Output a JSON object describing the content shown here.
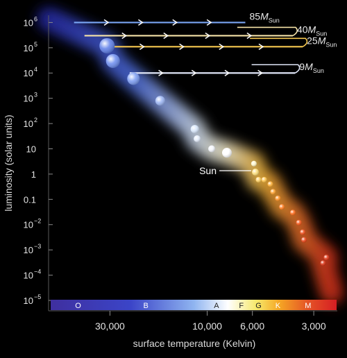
{
  "chart_data": {
    "type": "scatter",
    "title": "",
    "xlabel": "surface temperature (Kelvin)",
    "ylabel": "luminosity (solar units)",
    "x_scale": "log-reversed",
    "y_scale": "log",
    "xlim": [
      60000,
      2300
    ],
    "ylim": [
      1e-05,
      1500000
    ],
    "x_ticks": [
      {
        "value": 30000,
        "label": "30,000"
      },
      {
        "value": 10000,
        "label": "10,000"
      },
      {
        "value": 6000,
        "label": "6,000"
      },
      {
        "value": 3000,
        "label": "3,000"
      }
    ],
    "y_ticks": [
      {
        "value": 1000000,
        "base": "10",
        "exp": "6"
      },
      {
        "value": 100000,
        "base": "10",
        "exp": "5"
      },
      {
        "value": 10000,
        "base": "10",
        "exp": "4"
      },
      {
        "value": 1000,
        "base": "10",
        "exp": "3"
      },
      {
        "value": 100,
        "base": "10",
        "exp": "2"
      },
      {
        "value": 10,
        "base": "10",
        "exp": ""
      },
      {
        "value": 1,
        "base": "1",
        "exp": ""
      },
      {
        "value": 0.1,
        "base": "0.1",
        "exp": ""
      },
      {
        "value": 0.01,
        "base": "10",
        "exp": "−2"
      },
      {
        "value": 0.001,
        "base": "10",
        "exp": "−3"
      },
      {
        "value": 0.0001,
        "base": "10",
        "exp": "−4"
      },
      {
        "value": 1e-05,
        "base": "10",
        "exp": "−5"
      }
    ],
    "spectral_classes": [
      {
        "label": "O",
        "temp": 43000
      },
      {
        "label": "B",
        "temp": 20000
      },
      {
        "label": "A",
        "temp": 9000
      },
      {
        "label": "F",
        "temp": 6800
      },
      {
        "label": "G",
        "temp": 5600
      },
      {
        "label": "K",
        "temp": 4500
      },
      {
        "label": "M",
        "temp": 3200
      }
    ],
    "main_sequence_stars": [
      {
        "temp": 31000,
        "lum": 120000,
        "r": 11,
        "color": "#5d7ee8"
      },
      {
        "temp": 29000,
        "lum": 30000,
        "r": 10,
        "color": "#6b8cef"
      },
      {
        "temp": 23000,
        "lum": 6000,
        "r": 9,
        "color": "#7a9bf2"
      },
      {
        "temp": 17000,
        "lum": 800,
        "r": 7,
        "color": "#9bb5f4"
      },
      {
        "temp": 11500,
        "lum": 60,
        "r": 6,
        "color": "#d7e6fb"
      },
      {
        "temp": 11200,
        "lum": 25,
        "r": 5,
        "color": "#e3ecfb"
      },
      {
        "temp": 9500,
        "lum": 10,
        "r": 5,
        "color": "#f2f5fb"
      },
      {
        "temp": 8000,
        "lum": 7,
        "r": 7,
        "color": "#ffffff"
      },
      {
        "temp": 5900,
        "lum": 2.6,
        "r": 4,
        "color": "#fff6c8"
      },
      {
        "temp": 5800,
        "lum": 1.2,
        "r": 5,
        "color": "#ffe07a"
      },
      {
        "temp": 5600,
        "lum": 0.6,
        "r": 4,
        "color": "#ffd060"
      },
      {
        "temp": 5250,
        "lum": 0.6,
        "r": 4,
        "color": "#ffc246"
      },
      {
        "temp": 4900,
        "lum": 0.4,
        "r": 4,
        "color": "#ffaf32"
      },
      {
        "temp": 4750,
        "lum": 0.2,
        "r": 4,
        "color": "#ffa02a"
      },
      {
        "temp": 4500,
        "lum": 0.11,
        "r": 4,
        "color": "#ff9020"
      },
      {
        "temp": 4300,
        "lum": 0.05,
        "r": 4,
        "color": "#ff7a1a"
      },
      {
        "temp": 3800,
        "lum": 0.03,
        "r": 4,
        "color": "#ff6a16"
      },
      {
        "temp": 3550,
        "lum": 0.012,
        "r": 4,
        "color": "#f55514"
      },
      {
        "temp": 3400,
        "lum": 0.005,
        "r": 4,
        "color": "#ee4a14"
      },
      {
        "temp": 3350,
        "lum": 0.0025,
        "r": 4,
        "color": "#e84012"
      },
      {
        "temp": 2600,
        "lum": 0.0005,
        "r": 4,
        "color": "#e03412"
      },
      {
        "temp": 2700,
        "lum": 0.0003,
        "r": 4,
        "color": "#d92e10"
      }
    ],
    "sun_annotation": {
      "label": "Sun",
      "temp": 5800,
      "lum": 1.2
    },
    "evolutionary_tracks": [
      {
        "name": "85",
        "subscript": "Sun",
        "lum": 1000000,
        "temp_start": 45000,
        "temp_end": 6500
      },
      {
        "name": "40",
        "subscript": "Sun",
        "lum": 300000,
        "temp_start": 40000,
        "temp_end": 3800
      },
      {
        "name": "25",
        "subscript": "Sun",
        "lum": 110000,
        "temp_start": 32000,
        "temp_end": 3400
      },
      {
        "name": "9",
        "subscript": "Sun",
        "lum": 10000,
        "temp_start": 24000,
        "temp_end": 3700
      }
    ]
  }
}
